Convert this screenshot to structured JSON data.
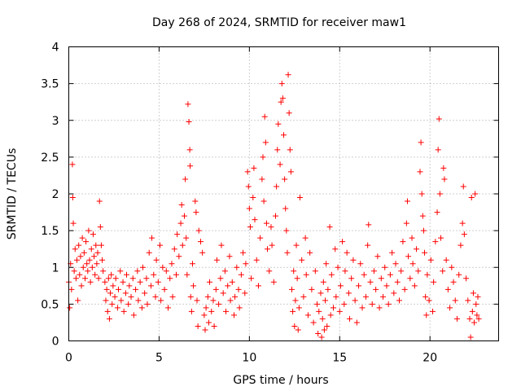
{
  "chart_data": {
    "type": "scatter",
    "title": "Day 268 of 2024, SRMTID for receiver maw1",
    "xlabel": "GPS time / hours",
    "ylabel": "SRMTID / TECUs",
    "xlim": [
      0,
      23.8
    ],
    "ylim": [
      0,
      4
    ],
    "xticks": [
      0,
      5,
      10,
      15,
      20
    ],
    "xtick_labels": [
      "0",
      "5",
      "10",
      "15",
      "20"
    ],
    "yticks": [
      0,
      0.5,
      1,
      1.5,
      2,
      2.5,
      3,
      3.5,
      4
    ],
    "ytick_labels": [
      "0",
      "0.5",
      "1",
      "1.5",
      "2",
      "2.5",
      "3",
      "3.5",
      "4"
    ],
    "grid": true,
    "marker": "+",
    "color": "#ff0000",
    "series": [
      {
        "name": "maw1",
        "points": [
          [
            0.0,
            0.8
          ],
          [
            0.05,
            0.45
          ],
          [
            0.1,
            1.05
          ],
          [
            0.15,
            0.7
          ],
          [
            0.2,
            2.4
          ],
          [
            0.22,
            1.95
          ],
          [
            0.25,
            1.6
          ],
          [
            0.3,
            0.95
          ],
          [
            0.35,
            1.25
          ],
          [
            0.4,
            0.85
          ],
          [
            0.45,
            1.1
          ],
          [
            0.5,
            0.55
          ],
          [
            0.55,
            1.3
          ],
          [
            0.6,
            0.9
          ],
          [
            0.65,
            1.15
          ],
          [
            0.7,
            0.75
          ],
          [
            0.75,
            1.4
          ],
          [
            0.8,
            1.0
          ],
          [
            0.85,
            1.2
          ],
          [
            0.9,
            0.85
          ],
          [
            0.95,
            1.35
          ],
          [
            1.0,
            1.05
          ],
          [
            1.05,
            0.95
          ],
          [
            1.1,
            1.5
          ],
          [
            1.15,
            1.1
          ],
          [
            1.2,
            0.8
          ],
          [
            1.25,
            1.25
          ],
          [
            1.3,
            1.0
          ],
          [
            1.35,
            1.45
          ],
          [
            1.4,
            1.15
          ],
          [
            1.45,
            0.9
          ],
          [
            1.5,
            1.3
          ],
          [
            1.55,
            1.05
          ],
          [
            1.6,
            1.2
          ],
          [
            1.65,
            0.85
          ],
          [
            1.7,
            1.9
          ],
          [
            1.75,
            1.55
          ],
          [
            1.8,
            1.3
          ],
          [
            1.85,
            1.1
          ],
          [
            1.9,
            0.95
          ],
          [
            2.0,
            0.8
          ],
          [
            2.05,
            0.55
          ],
          [
            2.1,
            0.7
          ],
          [
            2.15,
            0.4
          ],
          [
            2.2,
            0.85
          ],
          [
            2.25,
            0.3
          ],
          [
            2.3,
            0.65
          ],
          [
            2.35,
            0.9
          ],
          [
            2.4,
            0.5
          ],
          [
            2.45,
            0.75
          ],
          [
            2.55,
            0.6
          ],
          [
            2.6,
            0.85
          ],
          [
            2.7,
            0.45
          ],
          [
            2.75,
            0.7
          ],
          [
            2.85,
            0.95
          ],
          [
            2.9,
            0.55
          ],
          [
            3.0,
            0.8
          ],
          [
            3.05,
            0.4
          ],
          [
            3.15,
            0.65
          ],
          [
            3.2,
            0.9
          ],
          [
            3.3,
            0.5
          ],
          [
            3.35,
            0.75
          ],
          [
            3.45,
            0.6
          ],
          [
            3.55,
            0.85
          ],
          [
            3.6,
            0.35
          ],
          [
            3.7,
            0.7
          ],
          [
            3.8,
            0.95
          ],
          [
            3.85,
            0.55
          ],
          [
            3.95,
            0.8
          ],
          [
            4.05,
            0.45
          ],
          [
            4.1,
            1.0
          ],
          [
            4.2,
            0.65
          ],
          [
            4.3,
            0.85
          ],
          [
            4.35,
            0.5
          ],
          [
            4.45,
            1.2
          ],
          [
            4.55,
            0.75
          ],
          [
            4.6,
            1.4
          ],
          [
            4.7,
            0.9
          ],
          [
            4.8,
            0.6
          ],
          [
            4.85,
            1.1
          ],
          [
            4.95,
            0.8
          ],
          [
            5.05,
            1.3
          ],
          [
            5.1,
            0.55
          ],
          [
            5.2,
            1.0
          ],
          [
            5.3,
            0.7
          ],
          [
            5.4,
            0.95
          ],
          [
            5.5,
            0.45
          ],
          [
            5.6,
            0.85
          ],
          [
            5.7,
            1.05
          ],
          [
            5.75,
            0.6
          ],
          [
            5.85,
            1.25
          ],
          [
            5.95,
            0.9
          ],
          [
            6.0,
            1.45
          ],
          [
            6.1,
            1.15
          ],
          [
            6.2,
            1.6
          ],
          [
            6.25,
            1.85
          ],
          [
            6.3,
            1.3
          ],
          [
            6.4,
            1.7
          ],
          [
            6.45,
            2.2
          ],
          [
            6.5,
            1.4
          ],
          [
            6.55,
            0.9
          ],
          [
            6.6,
            3.22
          ],
          [
            6.65,
            2.98
          ],
          [
            6.7,
            2.6
          ],
          [
            6.72,
            2.38
          ],
          [
            6.75,
            0.6
          ],
          [
            6.8,
            0.4
          ],
          [
            6.85,
            1.05
          ],
          [
            6.9,
            0.75
          ],
          [
            7.0,
            1.9
          ],
          [
            7.05,
            1.75
          ],
          [
            7.1,
            0.55
          ],
          [
            7.15,
            0.2
          ],
          [
            7.2,
            1.5
          ],
          [
            7.3,
            1.35
          ],
          [
            7.4,
            1.2
          ],
          [
            7.5,
            0.35
          ],
          [
            7.55,
            0.15
          ],
          [
            7.6,
            0.45
          ],
          [
            7.7,
            0.6
          ],
          [
            7.75,
            0.25
          ],
          [
            7.8,
            0.8
          ],
          [
            7.9,
            0.4
          ],
          [
            8.0,
            0.55
          ],
          [
            8.05,
            0.2
          ],
          [
            8.15,
            0.7
          ],
          [
            8.2,
            1.1
          ],
          [
            8.3,
            0.5
          ],
          [
            8.4,
            0.85
          ],
          [
            8.45,
            1.3
          ],
          [
            8.55,
            0.65
          ],
          [
            8.65,
            0.95
          ],
          [
            8.7,
            0.4
          ],
          [
            8.8,
            0.75
          ],
          [
            8.9,
            1.15
          ],
          [
            8.95,
            0.55
          ],
          [
            9.05,
            0.8
          ],
          [
            9.15,
            0.35
          ],
          [
            9.2,
            0.6
          ],
          [
            9.3,
            1.0
          ],
          [
            9.4,
            0.7
          ],
          [
            9.45,
            0.45
          ],
          [
            9.55,
            0.9
          ],
          [
            9.65,
            1.2
          ],
          [
            9.75,
            0.65
          ],
          [
            9.8,
            1.05
          ],
          [
            9.9,
            2.3
          ],
          [
            9.95,
            2.1
          ],
          [
            10.0,
            1.8
          ],
          [
            10.05,
            1.55
          ],
          [
            10.1,
            0.85
          ],
          [
            10.2,
            1.95
          ],
          [
            10.25,
            2.35
          ],
          [
            10.3,
            1.65
          ],
          [
            10.4,
            1.1
          ],
          [
            10.5,
            0.75
          ],
          [
            10.6,
            1.4
          ],
          [
            10.7,
            2.2
          ],
          [
            10.75,
            2.5
          ],
          [
            10.8,
            1.9
          ],
          [
            10.85,
            3.05
          ],
          [
            10.9,
            2.7
          ],
          [
            10.95,
            1.6
          ],
          [
            11.0,
            1.25
          ],
          [
            11.1,
            0.95
          ],
          [
            11.2,
            1.55
          ],
          [
            11.25,
            1.3
          ],
          [
            11.35,
            0.8
          ],
          [
            11.45,
            1.7
          ],
          [
            11.5,
            2.1
          ],
          [
            11.55,
            2.6
          ],
          [
            11.6,
            2.95
          ],
          [
            11.7,
            2.4
          ],
          [
            11.75,
            3.25
          ],
          [
            11.8,
            3.5
          ],
          [
            11.85,
            3.3
          ],
          [
            11.9,
            2.8
          ],
          [
            11.95,
            2.2
          ],
          [
            12.0,
            1.8
          ],
          [
            12.05,
            1.5
          ],
          [
            12.1,
            1.2
          ],
          [
            12.15,
            3.62
          ],
          [
            12.2,
            3.1
          ],
          [
            12.25,
            2.6
          ],
          [
            12.3,
            2.3
          ],
          [
            12.35,
            0.7
          ],
          [
            12.4,
            0.4
          ],
          [
            12.45,
            0.95
          ],
          [
            12.5,
            0.2
          ],
          [
            12.55,
            0.55
          ],
          [
            12.6,
            1.3
          ],
          [
            12.65,
            0.85
          ],
          [
            12.7,
            0.15
          ],
          [
            12.75,
            0.45
          ],
          [
            12.8,
            1.95
          ],
          [
            12.9,
            1.1
          ],
          [
            13.0,
            0.6
          ],
          [
            13.1,
            1.4
          ],
          [
            13.15,
            0.9
          ],
          [
            13.25,
            0.35
          ],
          [
            13.35,
            1.2
          ],
          [
            13.45,
            0.7
          ],
          [
            13.55,
            0.25
          ],
          [
            13.65,
            0.95
          ],
          [
            13.75,
            0.5
          ],
          [
            13.8,
            0.1
          ],
          [
            13.85,
            0.4
          ],
          [
            13.95,
            0.65
          ],
          [
            14.0,
            0.05
          ],
          [
            14.05,
            0.3
          ],
          [
            14.1,
            0.8
          ],
          [
            14.15,
            0.15
          ],
          [
            14.2,
            0.55
          ],
          [
            14.25,
            1.05
          ],
          [
            14.3,
            0.2
          ],
          [
            14.35,
            0.7
          ],
          [
            14.45,
            1.55
          ],
          [
            14.5,
            0.35
          ],
          [
            14.55,
            0.9
          ],
          [
            14.65,
            0.45
          ],
          [
            14.75,
            1.25
          ],
          [
            14.8,
            0.6
          ],
          [
            14.9,
            1.0
          ],
          [
            15.0,
            0.4
          ],
          [
            15.05,
            0.75
          ],
          [
            15.15,
            1.35
          ],
          [
            15.25,
            0.5
          ],
          [
            15.3,
            0.95
          ],
          [
            15.4,
            1.2
          ],
          [
            15.5,
            0.65
          ],
          [
            15.55,
            0.3
          ],
          [
            15.65,
            0.85
          ],
          [
            15.75,
            1.1
          ],
          [
            15.85,
            0.55
          ],
          [
            15.95,
            0.25
          ],
          [
            16.05,
            0.75
          ],
          [
            16.15,
            1.05
          ],
          [
            16.25,
            0.45
          ],
          [
            16.35,
            0.9
          ],
          [
            16.45,
            0.6
          ],
          [
            16.55,
            1.3
          ],
          [
            16.6,
            1.58
          ],
          [
            16.7,
            0.8
          ],
          [
            16.8,
            0.5
          ],
          [
            16.9,
            0.95
          ],
          [
            17.0,
            0.7
          ],
          [
            17.1,
            1.15
          ],
          [
            17.2,
            0.45
          ],
          [
            17.3,
            0.85
          ],
          [
            17.4,
            0.6
          ],
          [
            17.5,
            1.0
          ],
          [
            17.6,
            0.75
          ],
          [
            17.7,
            0.5
          ],
          [
            17.8,
            0.9
          ],
          [
            17.9,
            1.2
          ],
          [
            18.0,
            0.65
          ],
          [
            18.1,
            1.05
          ],
          [
            18.2,
            0.8
          ],
          [
            18.3,
            0.55
          ],
          [
            18.4,
            0.95
          ],
          [
            18.5,
            1.35
          ],
          [
            18.6,
            0.7
          ],
          [
            18.7,
            1.6
          ],
          [
            18.75,
            1.9
          ],
          [
            18.8,
            1.15
          ],
          [
            18.9,
            0.85
          ],
          [
            19.0,
            1.4
          ],
          [
            19.05,
            1.05
          ],
          [
            19.15,
            0.75
          ],
          [
            19.25,
            1.25
          ],
          [
            19.35,
            0.95
          ],
          [
            19.45,
            2.3
          ],
          [
            19.5,
            2.7
          ],
          [
            19.55,
            2.0
          ],
          [
            19.6,
            1.7
          ],
          [
            19.65,
            1.5
          ],
          [
            19.7,
            1.2
          ],
          [
            19.75,
            0.6
          ],
          [
            19.8,
            0.35
          ],
          [
            19.85,
            0.9
          ],
          [
            19.95,
            0.55
          ],
          [
            20.05,
            1.1
          ],
          [
            20.15,
            0.4
          ],
          [
            20.2,
            0.8
          ],
          [
            20.3,
            1.35
          ],
          [
            20.4,
            1.75
          ],
          [
            20.45,
            2.6
          ],
          [
            20.5,
            3.02
          ],
          [
            20.55,
            2.0
          ],
          [
            20.6,
            1.4
          ],
          [
            20.7,
            0.95
          ],
          [
            20.75,
            2.35
          ],
          [
            20.8,
            2.2
          ],
          [
            20.9,
            1.1
          ],
          [
            21.0,
            0.7
          ],
          [
            21.1,
            0.45
          ],
          [
            21.2,
            1.0
          ],
          [
            21.3,
            0.8
          ],
          [
            21.4,
            0.55
          ],
          [
            21.5,
            0.3
          ],
          [
            21.6,
            0.9
          ],
          [
            21.7,
            1.3
          ],
          [
            21.8,
            1.6
          ],
          [
            21.85,
            2.1
          ],
          [
            21.9,
            1.45
          ],
          [
            22.0,
            0.85
          ],
          [
            22.1,
            0.55
          ],
          [
            22.2,
            0.3
          ],
          [
            22.25,
            0.05
          ],
          [
            22.3,
            1.95
          ],
          [
            22.35,
            0.4
          ],
          [
            22.4,
            0.65
          ],
          [
            22.45,
            0.25
          ],
          [
            22.5,
            2.0
          ],
          [
            22.55,
            0.5
          ],
          [
            22.6,
            0.35
          ],
          [
            22.65,
            0.6
          ],
          [
            22.7,
            0.3
          ]
        ]
      }
    ]
  }
}
